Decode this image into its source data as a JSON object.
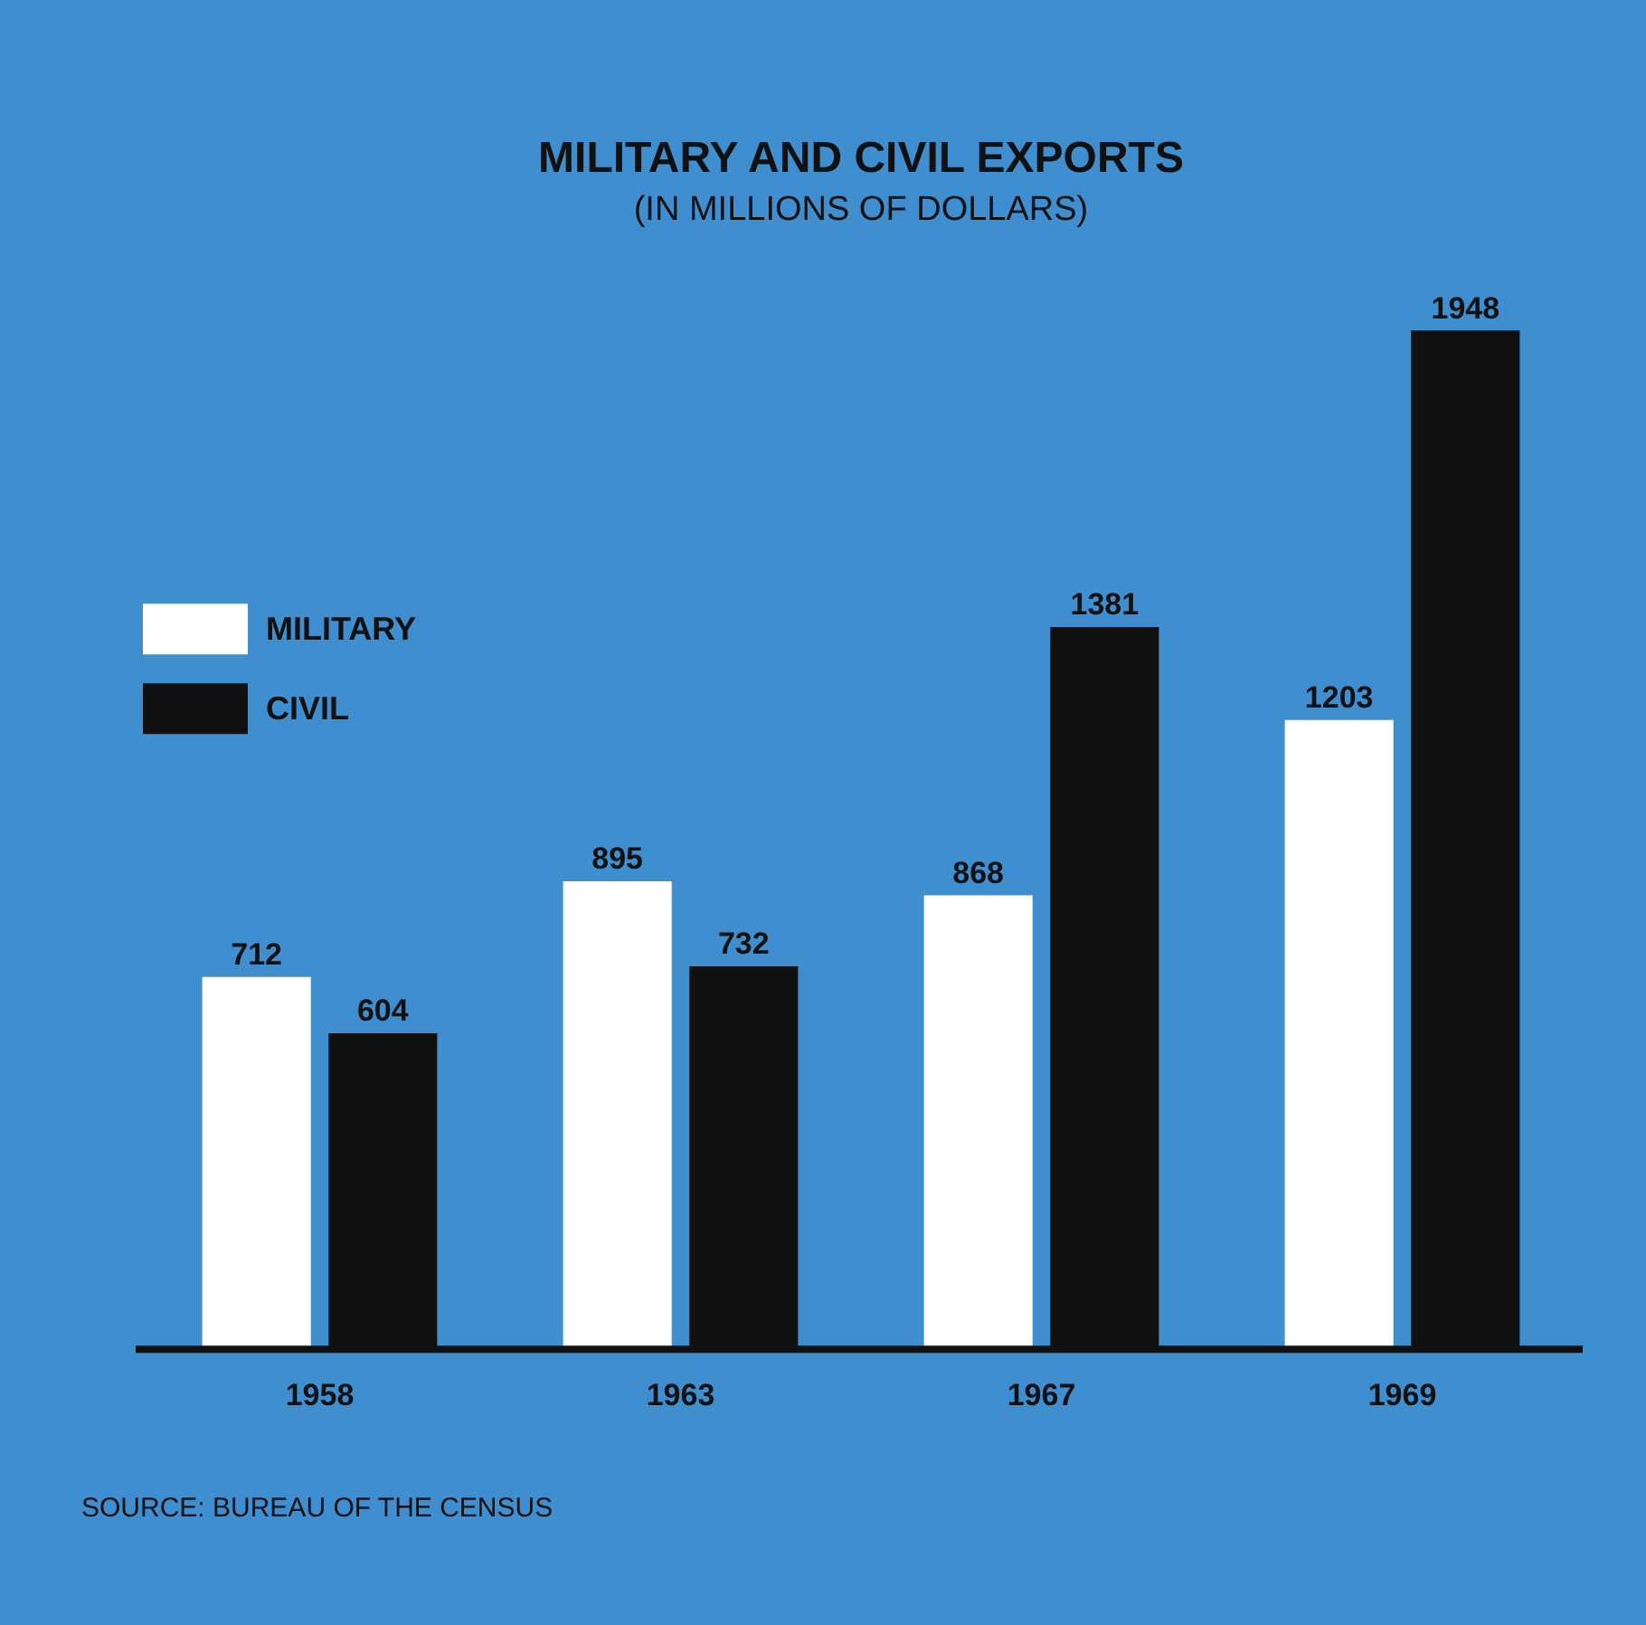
{
  "chart_data": {
    "type": "bar",
    "title": "MILITARY AND CIVIL EXPORTS",
    "subtitle": "(IN MILLIONS OF DOLLARS)",
    "categories": [
      "1958",
      "1963",
      "1967",
      "1969"
    ],
    "series": [
      {
        "name": "MILITARY",
        "color": "#ffffff",
        "values": [
          712,
          895,
          868,
          1203
        ]
      },
      {
        "name": "CIVIL",
        "color": "#111111",
        "values": [
          604,
          732,
          1381,
          1948
        ]
      }
    ],
    "data_labels": true,
    "legend": "top left",
    "grid": false,
    "annotations": [
      "SOURCE: BUREAU OF THE CENSUS"
    ]
  }
}
